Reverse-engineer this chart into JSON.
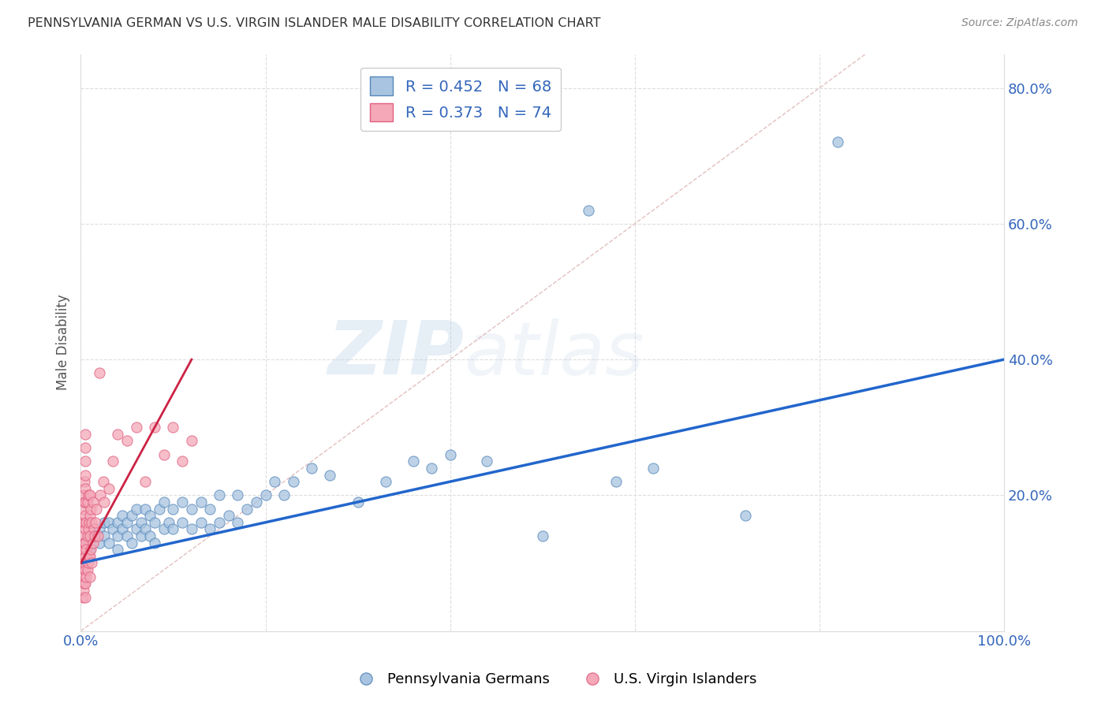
{
  "title": "PENNSYLVANIA GERMAN VS U.S. VIRGIN ISLANDER MALE DISABILITY CORRELATION CHART",
  "source": "Source: ZipAtlas.com",
  "ylabel": "Male Disability",
  "xlim": [
    0.0,
    1.0
  ],
  "ylim": [
    0.0,
    0.85
  ],
  "x_ticks": [
    0.0,
    0.2,
    0.4,
    0.6,
    0.8,
    1.0
  ],
  "x_tick_labels": [
    "0.0%",
    "",
    "",
    "",
    "",
    "100.0%"
  ],
  "y_ticks": [
    0.0,
    0.2,
    0.4,
    0.6,
    0.8
  ],
  "y_tick_labels_right": [
    "",
    "20.0%",
    "40.0%",
    "60.0%",
    "80.0%"
  ],
  "blue_R": 0.452,
  "blue_N": 68,
  "pink_R": 0.373,
  "pink_N": 74,
  "blue_color": "#A8C4E0",
  "pink_color": "#F4A8B8",
  "blue_edge_color": "#5588BB",
  "pink_edge_color": "#E06080",
  "blue_line_color": "#2266CC",
  "pink_line_color": "#CC2244",
  "diagonal_color": "#E0B8B8",
  "watermark_zip": "ZIP",
  "watermark_atlas": "atlas",
  "legend_label_blue": "Pennsylvania Germans",
  "legend_label_pink": "U.S. Virgin Islanders",
  "blue_x": [
    0.005,
    0.01,
    0.015,
    0.02,
    0.02,
    0.025,
    0.025,
    0.03,
    0.03,
    0.035,
    0.04,
    0.04,
    0.04,
    0.045,
    0.045,
    0.05,
    0.05,
    0.055,
    0.055,
    0.06,
    0.06,
    0.065,
    0.065,
    0.07,
    0.07,
    0.075,
    0.075,
    0.08,
    0.08,
    0.085,
    0.09,
    0.09,
    0.095,
    0.1,
    0.1,
    0.11,
    0.11,
    0.12,
    0.12,
    0.13,
    0.13,
    0.14,
    0.14,
    0.15,
    0.15,
    0.16,
    0.17,
    0.17,
    0.18,
    0.19,
    0.2,
    0.21,
    0.22,
    0.23,
    0.25,
    0.27,
    0.3,
    0.33,
    0.36,
    0.38,
    0.4,
    0.44,
    0.5,
    0.55,
    0.58,
    0.62,
    0.72,
    0.82
  ],
  "blue_y": [
    0.13,
    0.12,
    0.14,
    0.15,
    0.13,
    0.14,
    0.16,
    0.13,
    0.16,
    0.15,
    0.14,
    0.16,
    0.12,
    0.15,
    0.17,
    0.14,
    0.16,
    0.13,
    0.17,
    0.15,
    0.18,
    0.14,
    0.16,
    0.15,
    0.18,
    0.14,
    0.17,
    0.13,
    0.16,
    0.18,
    0.15,
    0.19,
    0.16,
    0.15,
    0.18,
    0.16,
    0.19,
    0.15,
    0.18,
    0.16,
    0.19,
    0.15,
    0.18,
    0.16,
    0.2,
    0.17,
    0.16,
    0.2,
    0.18,
    0.19,
    0.2,
    0.22,
    0.2,
    0.22,
    0.24,
    0.23,
    0.19,
    0.22,
    0.25,
    0.24,
    0.26,
    0.25,
    0.14,
    0.62,
    0.22,
    0.24,
    0.17,
    0.72
  ],
  "pink_x": [
    0.002,
    0.002,
    0.002,
    0.002,
    0.002,
    0.003,
    0.003,
    0.003,
    0.003,
    0.003,
    0.003,
    0.003,
    0.003,
    0.004,
    0.004,
    0.004,
    0.004,
    0.004,
    0.004,
    0.005,
    0.005,
    0.005,
    0.005,
    0.005,
    0.005,
    0.005,
    0.005,
    0.005,
    0.005,
    0.005,
    0.005,
    0.005,
    0.006,
    0.006,
    0.006,
    0.007,
    0.007,
    0.007,
    0.008,
    0.008,
    0.008,
    0.009,
    0.009,
    0.01,
    0.01,
    0.01,
    0.01,
    0.01,
    0.011,
    0.011,
    0.012,
    0.012,
    0.013,
    0.013,
    0.014,
    0.015,
    0.016,
    0.017,
    0.018,
    0.02,
    0.021,
    0.024,
    0.025,
    0.03,
    0.035,
    0.04,
    0.05,
    0.06,
    0.07,
    0.08,
    0.09,
    0.1,
    0.11,
    0.12
  ],
  "pink_y": [
    0.05,
    0.07,
    0.09,
    0.11,
    0.13,
    0.06,
    0.08,
    0.1,
    0.12,
    0.14,
    0.16,
    0.18,
    0.2,
    0.07,
    0.1,
    0.13,
    0.16,
    0.19,
    0.22,
    0.05,
    0.07,
    0.09,
    0.11,
    0.13,
    0.15,
    0.17,
    0.19,
    0.21,
    0.23,
    0.25,
    0.27,
    0.29,
    0.08,
    0.12,
    0.16,
    0.09,
    0.14,
    0.19,
    0.1,
    0.15,
    0.2,
    0.11,
    0.16,
    0.08,
    0.11,
    0.14,
    0.17,
    0.2,
    0.12,
    0.18,
    0.1,
    0.16,
    0.13,
    0.19,
    0.15,
    0.14,
    0.16,
    0.18,
    0.14,
    0.38,
    0.2,
    0.22,
    0.19,
    0.21,
    0.25,
    0.29,
    0.28,
    0.3,
    0.22,
    0.3,
    0.26,
    0.3,
    0.25,
    0.28
  ]
}
